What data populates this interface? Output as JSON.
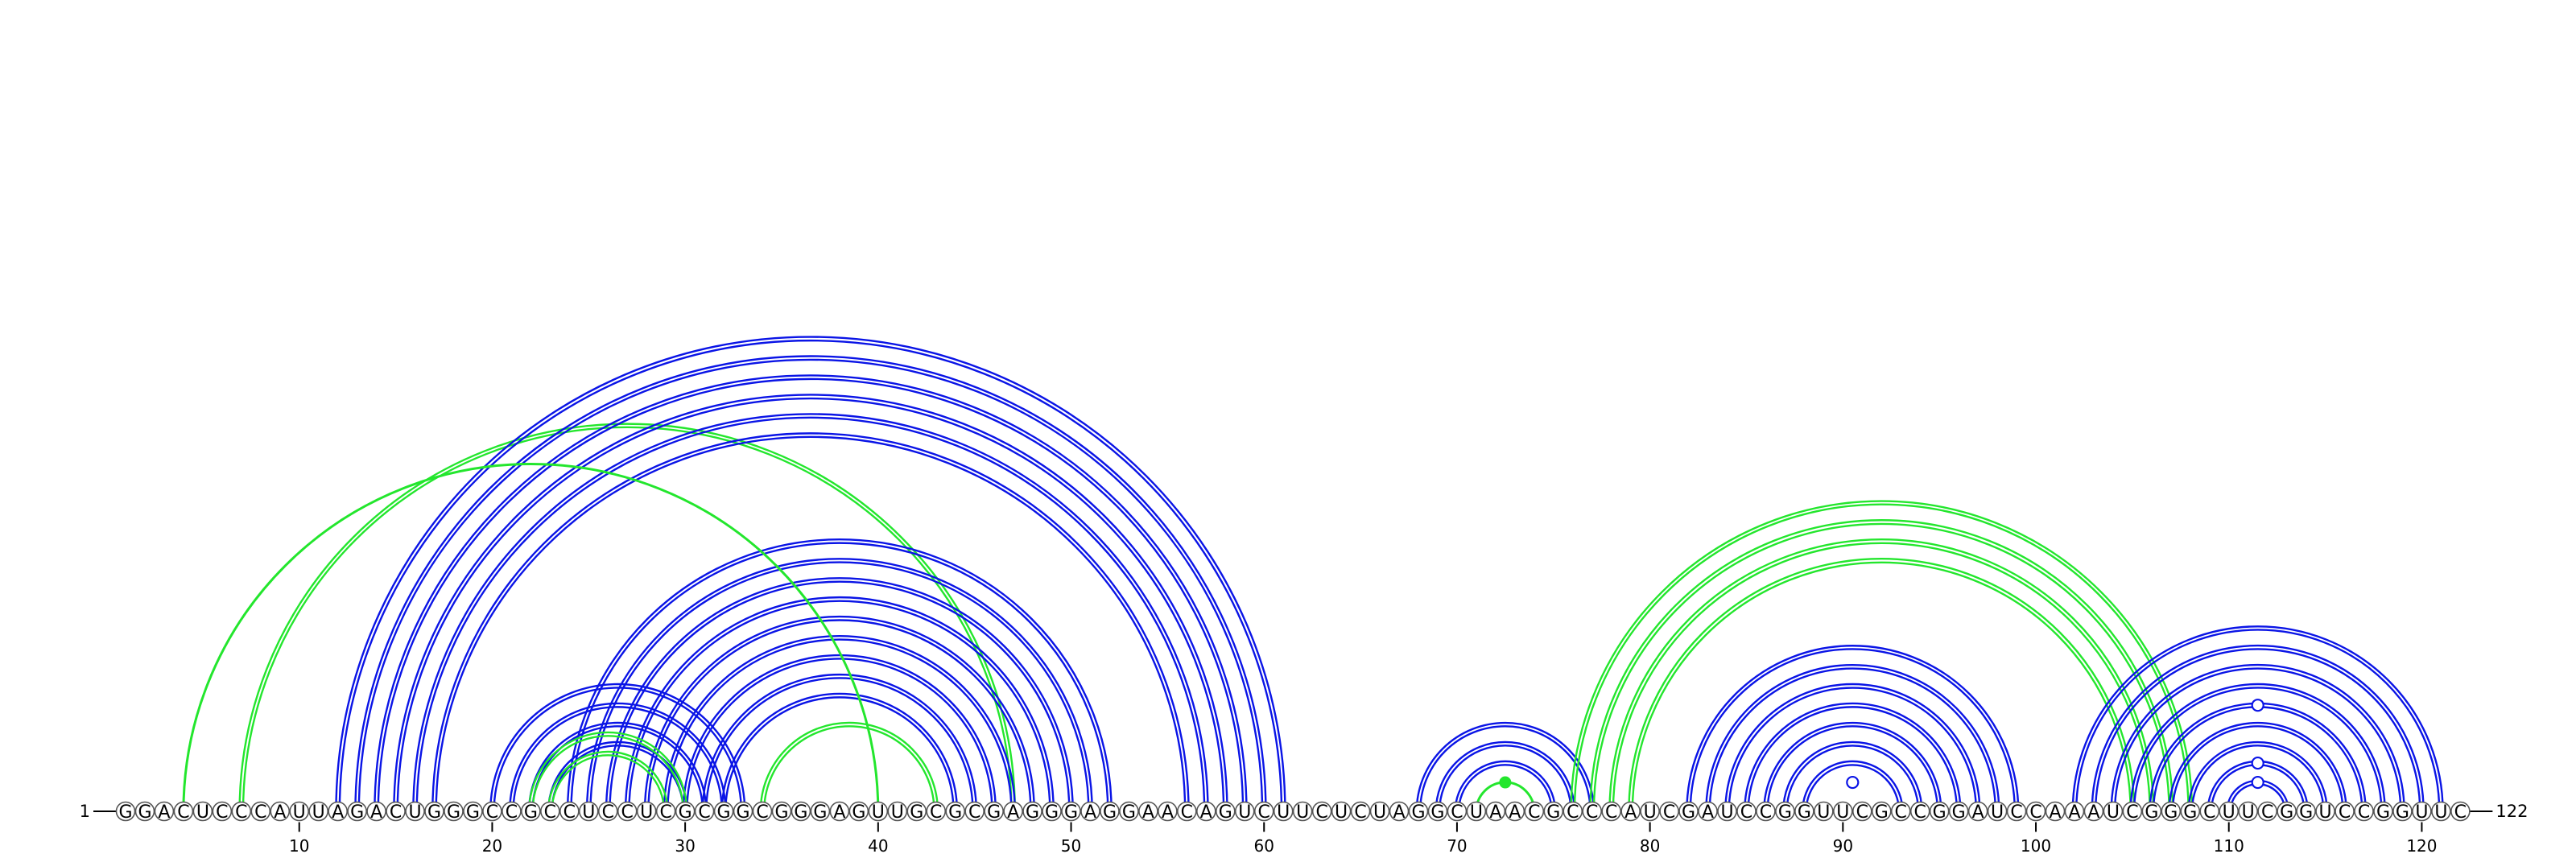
{
  "sequence": "GGACUCCCAUUAGACUGGGCCGCCUCCUCGCGGCGGGAGUUGCGCGAGGGAGGAACAGUCUUCUCUAGGCUAACGCCCAUCGAUCCGGUUCGCCGGAUCCAAAUCGGGCUUCGGUCCGGUUC",
  "start_label": "1",
  "end_label": "122",
  "tick_labels": [
    "10",
    "20",
    "30",
    "40",
    "50",
    "60",
    "70",
    "80",
    "90",
    "100",
    "110",
    "120"
  ],
  "colors": {
    "blue": "#0a14e6",
    "green": "#23e62d",
    "circle_stroke": "#555555",
    "circle_fill": "#ffffff"
  },
  "arcs": [
    {
      "i": 7,
      "j": 47,
      "color": "green",
      "style": "double"
    },
    {
      "i": 12,
      "j": 61,
      "color": "blue",
      "style": "double"
    },
    {
      "i": 13,
      "j": 60,
      "color": "blue",
      "style": "double"
    },
    {
      "i": 14,
      "j": 59,
      "color": "blue",
      "style": "double"
    },
    {
      "i": 15,
      "j": 58,
      "color": "blue",
      "style": "double"
    },
    {
      "i": 16,
      "j": 57,
      "color": "blue",
      "style": "double"
    },
    {
      "i": 17,
      "j": 56,
      "color": "blue",
      "style": "double"
    },
    {
      "i": 20,
      "j": 33,
      "color": "blue",
      "style": "double"
    },
    {
      "i": 21,
      "j": 32,
      "color": "blue",
      "style": "double"
    },
    {
      "i": 22,
      "j": 31,
      "color": "blue",
      "style": "double"
    },
    {
      "i": 23,
      "j": 30,
      "color": "blue",
      "style": "double"
    },
    {
      "i": 24,
      "j": 52,
      "color": "blue",
      "style": "double"
    },
    {
      "i": 25,
      "j": 51,
      "color": "blue",
      "style": "double"
    },
    {
      "i": 26,
      "j": 50,
      "color": "blue",
      "style": "double"
    },
    {
      "i": 27,
      "j": 49,
      "color": "blue",
      "style": "double"
    },
    {
      "i": 28,
      "j": 48,
      "color": "blue",
      "style": "double"
    },
    {
      "i": 29,
      "j": 47,
      "color": "blue",
      "style": "double"
    },
    {
      "i": 30,
      "j": 46,
      "color": "blue",
      "style": "double"
    },
    {
      "i": 31,
      "j": 45,
      "color": "blue",
      "style": "double"
    },
    {
      "i": 32,
      "j": 44,
      "color": "blue",
      "style": "double"
    },
    {
      "i": 22,
      "j": 30,
      "color": "green",
      "style": "double"
    },
    {
      "i": 23,
      "j": 29,
      "color": "green",
      "style": "double"
    },
    {
      "i": 34,
      "j": 43,
      "color": "green",
      "style": "double"
    },
    {
      "i": 68,
      "j": 77,
      "color": "blue",
      "style": "double"
    },
    {
      "i": 69,
      "j": 76,
      "color": "blue",
      "style": "double"
    },
    {
      "i": 70,
      "j": 75,
      "color": "blue",
      "style": "double"
    },
    {
      "i": 76,
      "j": 108,
      "color": "green",
      "style": "double"
    },
    {
      "i": 77,
      "j": 107,
      "color": "green",
      "style": "double"
    },
    {
      "i": 78,
      "j": 106,
      "color": "green",
      "style": "double"
    },
    {
      "i": 79,
      "j": 105,
      "color": "green",
      "style": "double"
    },
    {
      "i": 82,
      "j": 99,
      "color": "blue",
      "style": "double"
    },
    {
      "i": 83,
      "j": 98,
      "color": "blue",
      "style": "double"
    },
    {
      "i": 84,
      "j": 97,
      "color": "blue",
      "style": "double"
    },
    {
      "i": 85,
      "j": 96,
      "color": "blue",
      "style": "double"
    },
    {
      "i": 86,
      "j": 95,
      "color": "blue",
      "style": "double"
    },
    {
      "i": 87,
      "j": 94,
      "color": "blue",
      "style": "double"
    },
    {
      "i": 88,
      "j": 93,
      "color": "blue",
      "style": "double"
    },
    {
      "i": 102,
      "j": 121,
      "color": "blue",
      "style": "double"
    },
    {
      "i": 103,
      "j": 120,
      "color": "blue",
      "style": "double"
    },
    {
      "i": 104,
      "j": 119,
      "color": "blue",
      "style": "double"
    },
    {
      "i": 105,
      "j": 118,
      "color": "blue",
      "style": "double"
    },
    {
      "i": 106,
      "j": 117,
      "color": "blue",
      "style": "double"
    },
    {
      "i": 107,
      "j": 116,
      "color": "blue",
      "style": "double"
    },
    {
      "i": 108,
      "j": 115,
      "color": "blue",
      "style": "double"
    },
    {
      "i": 109,
      "j": 114,
      "color": "blue",
      "style": "double"
    },
    {
      "i": 110,
      "j": 113,
      "color": "blue",
      "style": "double"
    },
    {
      "i": 4,
      "j": 40,
      "color": "green",
      "style": "single"
    },
    {
      "i": 71,
      "j": 74,
      "color": "green",
      "style": "single"
    }
  ],
  "arc_markers": [
    {
      "i": 89,
      "j": 92,
      "kind": "open"
    },
    {
      "i": 110,
      "j": 113,
      "kind": "open"
    },
    {
      "i": 109,
      "j": 114,
      "kind": "open"
    },
    {
      "i": 106,
      "j": 117,
      "kind": "open"
    },
    {
      "i": 71,
      "j": 74,
      "kind": "filled"
    }
  ]
}
